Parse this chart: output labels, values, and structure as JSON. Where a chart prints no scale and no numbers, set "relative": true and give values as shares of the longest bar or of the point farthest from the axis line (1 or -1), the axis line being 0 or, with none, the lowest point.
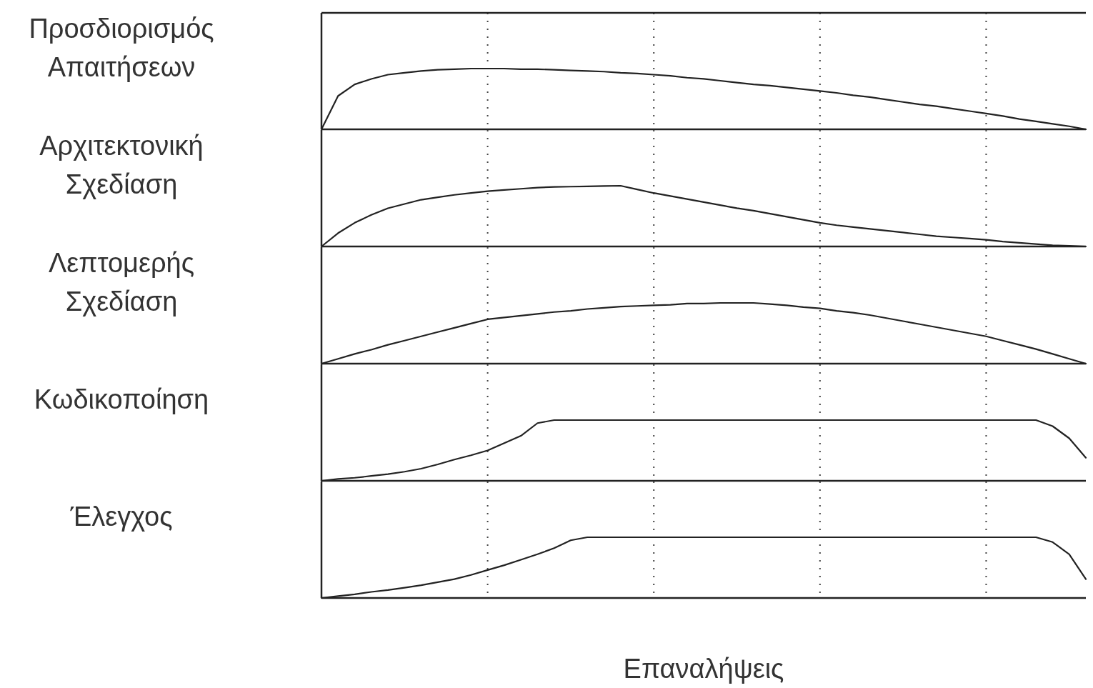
{
  "chart_data": [
    {
      "type": "line",
      "ylabel": "Προσδιορισμός Απαιτήσεων",
      "relative": true,
      "line_style": "solid",
      "categories": [
        null,
        null,
        null,
        null,
        null,
        null,
        null,
        null,
        null,
        null,
        null,
        null,
        null,
        null,
        null,
        null,
        null,
        null,
        null,
        null,
        null,
        null,
        null,
        null,
        null,
        null,
        null,
        null,
        null,
        null,
        null,
        null,
        null,
        null,
        null,
        null,
        null,
        null,
        null,
        null,
        null,
        null,
        null,
        null,
        null,
        null,
        null
      ],
      "grid": "x",
      "series": [
        {
          "color": "#222222",
          "values": [
            0,
            0.55,
            0.74,
            0.83,
            0.9,
            0.93,
            0.96,
            0.98,
            0.99,
            1,
            1,
            1,
            0.99,
            0.99,
            0.98,
            0.97,
            0.96,
            0.95,
            0.93,
            0.92,
            0.9,
            0.88,
            0.85,
            0.83,
            0.8,
            0.77,
            0.74,
            0.72,
            0.69,
            0.66,
            0.63,
            0.6,
            0.56,
            0.53,
            0.49,
            0.45,
            0.41,
            0.38,
            0.34,
            0.3,
            0.26,
            0.22,
            0.17,
            0.13,
            0.09,
            0.05,
            0
          ]
        }
      ]
    },
    {
      "type": "line",
      "ylabel": "Αρχιτεκτονική Σχεδίαση",
      "relative": true,
      "line_style": "solid",
      "categories": [
        null,
        null,
        null,
        null,
        null,
        null,
        null,
        null,
        null,
        null,
        null,
        null,
        null,
        null,
        null,
        null,
        null,
        null,
        null,
        null,
        null,
        null,
        null,
        null,
        null,
        null,
        null,
        null,
        null,
        null,
        null,
        null,
        null,
        null,
        null,
        null,
        null,
        null,
        null,
        null,
        null,
        null,
        null,
        null,
        null,
        null,
        null
      ],
      "grid": "x",
      "series": [
        {
          "color": "#222222",
          "values": [
            0,
            0.22,
            0.39,
            0.52,
            0.63,
            0.7,
            0.77,
            0.81,
            0.85,
            0.88,
            0.91,
            0.93,
            0.95,
            0.97,
            0.98,
            0.985,
            0.99,
            0.995,
            1,
            0.94,
            0.88,
            0.83,
            0.78,
            0.73,
            0.68,
            0.63,
            0.59,
            0.54,
            0.49,
            0.44,
            0.39,
            0.35,
            0.32,
            0.29,
            0.26,
            0.23,
            0.2,
            0.17,
            0.15,
            0.13,
            0.11,
            0.08,
            0.06,
            0.04,
            0.02,
            0.01,
            0
          ]
        }
      ]
    },
    {
      "type": "line",
      "ylabel": "Λεπτομερής Σχεδίαση",
      "relative": true,
      "line_style": "solid",
      "categories": [
        null,
        null,
        null,
        null,
        null,
        null,
        null,
        null,
        null,
        null,
        null,
        null,
        null,
        null,
        null,
        null,
        null,
        null,
        null,
        null,
        null,
        null,
        null,
        null,
        null,
        null,
        null,
        null,
        null,
        null,
        null,
        null,
        null,
        null,
        null,
        null,
        null,
        null,
        null,
        null,
        null,
        null,
        null,
        null,
        null,
        null,
        null
      ],
      "grid": "x",
      "series": [
        {
          "color": "#222222",
          "values": [
            0,
            0.08,
            0.16,
            0.23,
            0.31,
            0.38,
            0.45,
            0.52,
            0.59,
            0.66,
            0.73,
            0.76,
            0.79,
            0.82,
            0.85,
            0.87,
            0.9,
            0.92,
            0.94,
            0.95,
            0.96,
            0.97,
            0.99,
            0.99,
            1,
            1,
            1,
            0.98,
            0.96,
            0.93,
            0.91,
            0.87,
            0.84,
            0.8,
            0.75,
            0.7,
            0.65,
            0.6,
            0.55,
            0.5,
            0.45,
            0.38,
            0.31,
            0.24,
            0.16,
            0.08,
            0
          ]
        }
      ]
    },
    {
      "type": "line",
      "ylabel": "Κωδικοποίηση",
      "relative": true,
      "line_style": "solid",
      "categories": [
        null,
        null,
        null,
        null,
        null,
        null,
        null,
        null,
        null,
        null,
        null,
        null,
        null,
        null,
        null,
        null,
        null,
        null,
        null,
        null,
        null,
        null,
        null,
        null,
        null,
        null,
        null,
        null,
        null,
        null,
        null,
        null,
        null,
        null,
        null,
        null,
        null,
        null,
        null,
        null,
        null,
        null,
        null,
        null,
        null,
        null,
        null
      ],
      "grid": "x",
      "series": [
        {
          "color": "#222222",
          "values": [
            0,
            0.03,
            0.05,
            0.08,
            0.11,
            0.15,
            0.2,
            0.27,
            0.35,
            0.42,
            0.5,
            0.62,
            0.74,
            0.95,
            1,
            1,
            1,
            1,
            1,
            1,
            1,
            1,
            1,
            1,
            1,
            1,
            1,
            1,
            1,
            1,
            1,
            1,
            1,
            1,
            1,
            1,
            1,
            1,
            1,
            1,
            1,
            1,
            1,
            1,
            0.9,
            0.7,
            0.38
          ]
        }
      ]
    },
    {
      "type": "line",
      "ylabel": "Έλεγχος",
      "xlabel": "Επαναλήψεις",
      "relative": true,
      "line_style": "solid",
      "categories": [
        null,
        null,
        null,
        null,
        null,
        null,
        null,
        null,
        null,
        null,
        null,
        null,
        null,
        null,
        null,
        null,
        null,
        null,
        null,
        null,
        null,
        null,
        null,
        null,
        null,
        null,
        null,
        null,
        null,
        null,
        null,
        null,
        null,
        null,
        null,
        null,
        null,
        null,
        null,
        null,
        null,
        null,
        null,
        null,
        null,
        null,
        null
      ],
      "grid": "x",
      "series": [
        {
          "color": "#222222",
          "values": [
            0,
            0.03,
            0.06,
            0.1,
            0.13,
            0.17,
            0.21,
            0.26,
            0.31,
            0.38,
            0.46,
            0.54,
            0.63,
            0.72,
            0.82,
            0.95,
            1,
            1,
            1,
            1,
            1,
            1,
            1,
            1,
            1,
            1,
            1,
            1,
            1,
            1,
            1,
            1,
            1,
            1,
            1,
            1,
            1,
            1,
            1,
            1,
            1,
            1,
            1,
            1,
            0.92,
            0.72,
            0.31
          ]
        }
      ]
    }
  ]
}
